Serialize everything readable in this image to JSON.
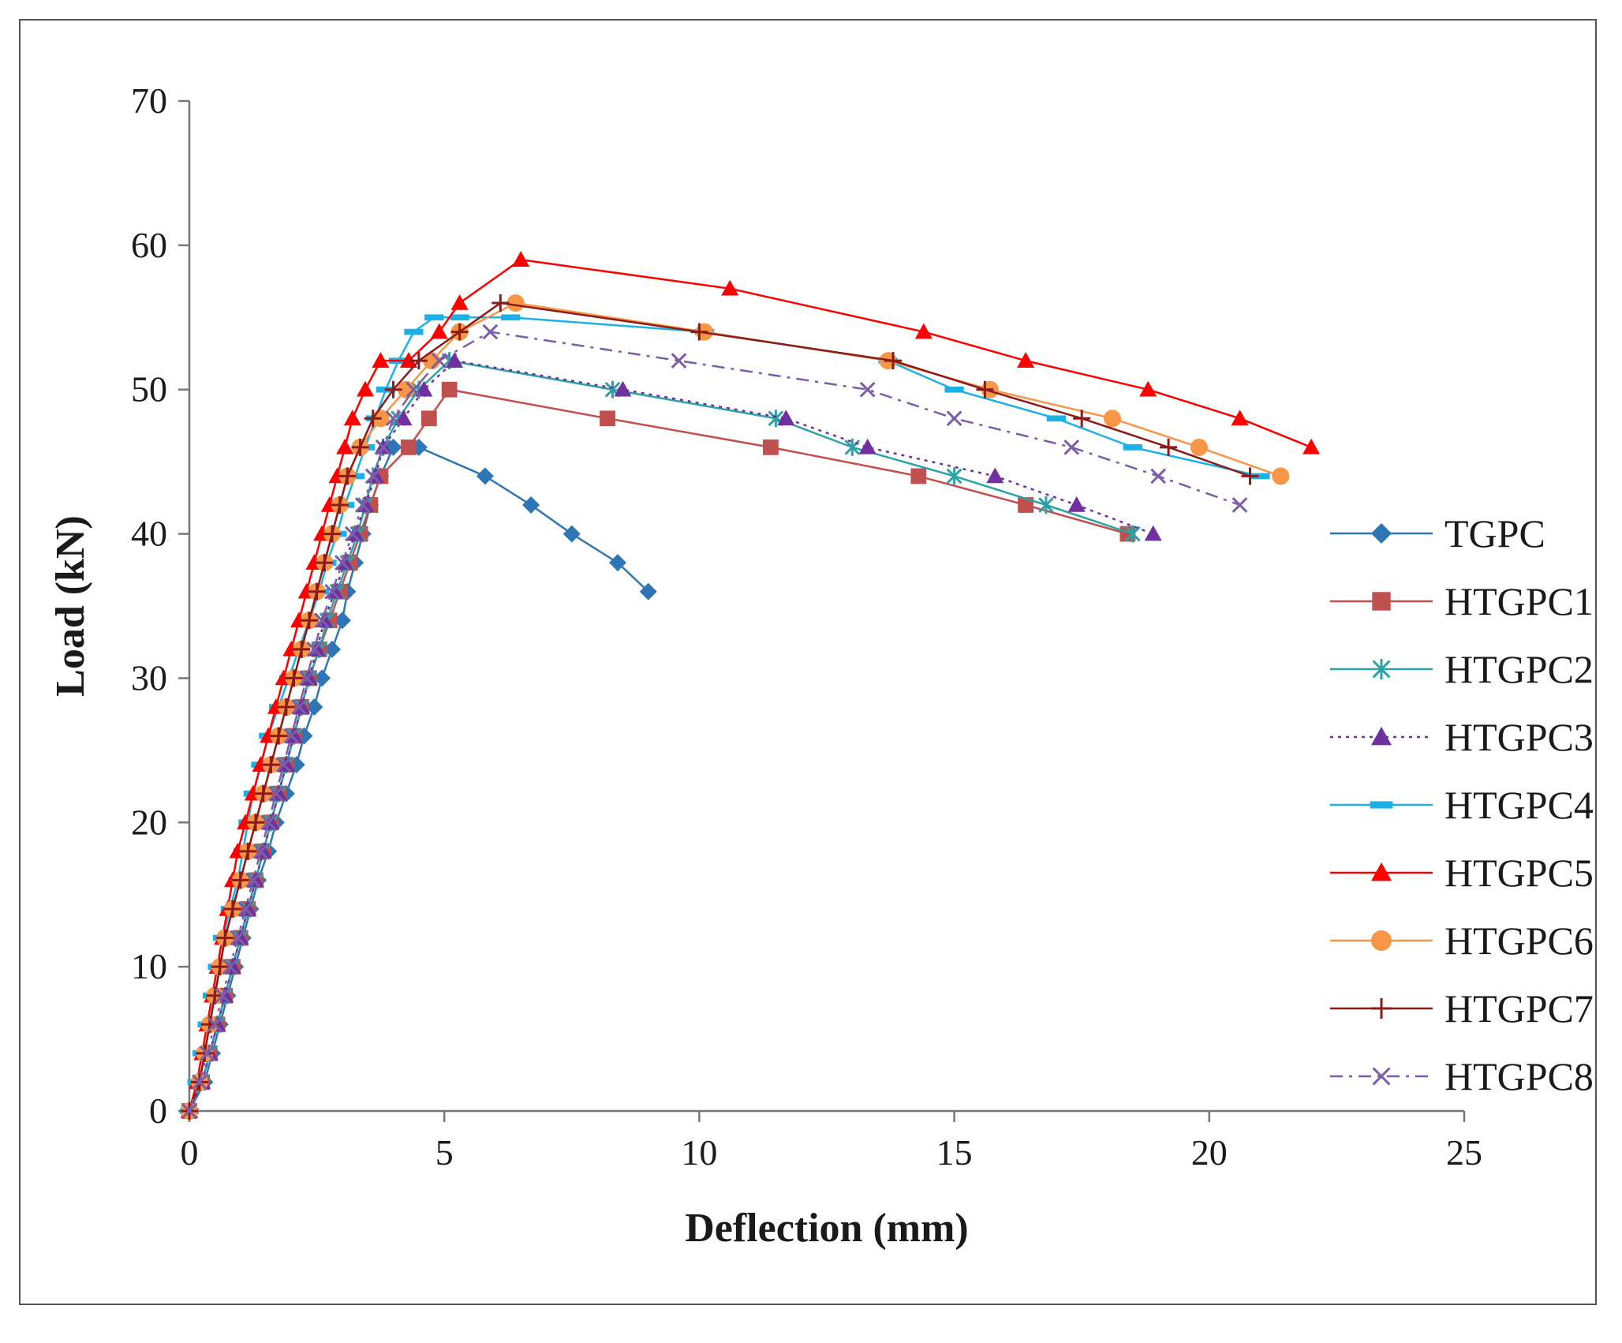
{
  "chart_data": {
    "type": "line",
    "title": "",
    "xlabel": "Deflection (mm)",
    "ylabel": "Load (kN)",
    "xlim": [
      0,
      25
    ],
    "ylim": [
      0,
      70
    ],
    "xticks": [
      0,
      5,
      10,
      15,
      20,
      25
    ],
    "yticks": [
      0,
      10,
      20,
      30,
      40,
      50,
      60,
      70
    ],
    "grid": false,
    "legend_position": "right",
    "series": [
      {
        "name": "TGPC",
        "color": "#2E75B6",
        "marker": "diamond",
        "dash": "solid",
        "x": [
          0,
          0.3,
          0.45,
          0.6,
          0.75,
          0.9,
          1.05,
          1.2,
          1.35,
          1.55,
          1.7,
          1.9,
          2.1,
          2.25,
          2.45,
          2.6,
          2.8,
          3.0,
          3.1,
          3.25,
          3.4,
          3.55,
          3.75,
          4.0,
          4.5,
          5.8,
          6.7,
          7.5,
          8.4,
          9.0
        ],
        "y": [
          0,
          2,
          4,
          6,
          8,
          10,
          12,
          14,
          16,
          18,
          20,
          22,
          24,
          26,
          28,
          30,
          32,
          34,
          36,
          38,
          40,
          42,
          44,
          46,
          46,
          44,
          42,
          40,
          38,
          36
        ]
      },
      {
        "name": "HTGPC1",
        "color": "#C0504D",
        "marker": "square",
        "dash": "solid",
        "x": [
          0,
          0.25,
          0.4,
          0.55,
          0.7,
          0.85,
          1.0,
          1.15,
          1.3,
          1.45,
          1.6,
          1.75,
          1.9,
          2.05,
          2.2,
          2.35,
          2.55,
          2.75,
          2.95,
          3.15,
          3.35,
          3.55,
          3.75,
          4.3,
          4.7,
          5.1,
          8.2,
          11.4,
          14.3,
          16.4,
          18.4
        ],
        "y": [
          0,
          2,
          4,
          6,
          8,
          10,
          12,
          14,
          16,
          18,
          20,
          22,
          24,
          26,
          28,
          30,
          32,
          34,
          36,
          38,
          40,
          42,
          44,
          46,
          48,
          50,
          48,
          46,
          44,
          42,
          40
        ]
      },
      {
        "name": "HTGPC2",
        "color": "#2BA3A6",
        "marker": "asterisk",
        "dash": "solid",
        "x": [
          0,
          0.25,
          0.4,
          0.55,
          0.7,
          0.85,
          1.0,
          1.15,
          1.3,
          1.45,
          1.6,
          1.75,
          1.9,
          2.05,
          2.2,
          2.35,
          2.55,
          2.7,
          2.9,
          3.1,
          3.3,
          3.45,
          3.6,
          3.8,
          4.1,
          4.5,
          5.1,
          8.3,
          11.5,
          13.0,
          15.0,
          16.8,
          18.5
        ],
        "y": [
          0,
          2,
          4,
          6,
          8,
          10,
          12,
          14,
          16,
          18,
          20,
          22,
          24,
          26,
          28,
          30,
          32,
          34,
          36,
          38,
          40,
          42,
          44,
          46,
          48,
          50,
          52,
          50,
          48,
          46,
          44,
          42,
          40
        ]
      },
      {
        "name": "HTGPC3",
        "color": "#7030A0",
        "marker": "triangle",
        "dash": "dotted",
        "x": [
          0,
          0.25,
          0.4,
          0.55,
          0.7,
          0.85,
          1.0,
          1.15,
          1.3,
          1.45,
          1.6,
          1.75,
          1.9,
          2.05,
          2.2,
          2.35,
          2.5,
          2.65,
          2.85,
          3.05,
          3.25,
          3.45,
          3.65,
          3.8,
          4.2,
          4.6,
          5.2,
          8.5,
          11.7,
          13.3,
          15.8,
          17.4,
          18.9
        ],
        "y": [
          0,
          2,
          4,
          6,
          8,
          10,
          12,
          14,
          16,
          18,
          20,
          22,
          24,
          26,
          28,
          30,
          32,
          34,
          36,
          38,
          40,
          42,
          44,
          46,
          48,
          50,
          52,
          50,
          48,
          46,
          44,
          42,
          40
        ]
      },
      {
        "name": "HTGPC4",
        "color": "#1CB0E8",
        "marker": "dash",
        "dash": "solid",
        "x": [
          0,
          0.15,
          0.25,
          0.35,
          0.45,
          0.55,
          0.65,
          0.8,
          0.95,
          1.05,
          1.15,
          1.25,
          1.4,
          1.55,
          1.75,
          1.95,
          2.15,
          2.35,
          2.55,
          2.7,
          2.9,
          3.05,
          3.25,
          3.45,
          3.65,
          3.85,
          4.1,
          4.4,
          4.8,
          5.3,
          6.3,
          10.1,
          13.7,
          15.0,
          17.0,
          18.5,
          21.0
        ],
        "y": [
          0,
          2,
          4,
          6,
          8,
          10,
          12,
          14,
          16,
          18,
          20,
          22,
          24,
          26,
          28,
          30,
          32,
          34,
          36,
          38,
          40,
          42,
          44,
          46,
          48,
          50,
          52,
          54,
          55,
          55,
          55,
          54,
          52,
          50,
          48,
          46,
          44
        ]
      },
      {
        "name": "HTGPC5",
        "color": "#FF0000",
        "marker": "triangle",
        "dash": "solid",
        "x": [
          0,
          0.15,
          0.25,
          0.35,
          0.45,
          0.55,
          0.65,
          0.75,
          0.85,
          0.95,
          1.1,
          1.25,
          1.4,
          1.55,
          1.7,
          1.85,
          2.0,
          2.15,
          2.3,
          2.45,
          2.6,
          2.75,
          2.9,
          3.05,
          3.2,
          3.45,
          3.75,
          4.3,
          4.9,
          5.3,
          6.5,
          10.6,
          14.4,
          16.4,
          18.8,
          20.6,
          22.0
        ],
        "y": [
          0,
          2,
          4,
          6,
          8,
          10,
          12,
          14,
          16,
          18,
          20,
          22,
          24,
          26,
          28,
          30,
          32,
          34,
          36,
          38,
          40,
          42,
          44,
          46,
          48,
          50,
          52,
          52,
          54,
          56,
          59,
          57,
          54,
          52,
          50,
          48,
          46
        ]
      },
      {
        "name": "HTGPC6",
        "color": "#F79646",
        "marker": "circle",
        "dash": "solid",
        "x": [
          0,
          0.2,
          0.3,
          0.4,
          0.5,
          0.6,
          0.7,
          0.85,
          1.0,
          1.15,
          1.3,
          1.45,
          1.6,
          1.75,
          1.9,
          2.05,
          2.2,
          2.35,
          2.5,
          2.65,
          2.8,
          2.95,
          3.1,
          3.35,
          3.75,
          4.25,
          4.75,
          5.3,
          6.4,
          10.1,
          13.7,
          15.7,
          18.1,
          19.8,
          21.4
        ],
        "y": [
          0,
          2,
          4,
          6,
          8,
          10,
          12,
          14,
          16,
          18,
          20,
          22,
          24,
          26,
          28,
          30,
          32,
          34,
          36,
          38,
          40,
          42,
          44,
          46,
          48,
          50,
          52,
          54,
          56,
          54,
          52,
          50,
          48,
          46,
          44
        ]
      },
      {
        "name": "HTGPC7",
        "color": "#8B1A1A",
        "marker": "plus",
        "dash": "solid",
        "x": [
          0,
          0.2,
          0.3,
          0.4,
          0.5,
          0.6,
          0.7,
          0.85,
          1.0,
          1.15,
          1.3,
          1.45,
          1.6,
          1.75,
          1.9,
          2.05,
          2.2,
          2.35,
          2.5,
          2.65,
          2.8,
          2.95,
          3.1,
          3.35,
          3.6,
          4.0,
          4.5,
          5.3,
          6.1,
          10.0,
          13.8,
          15.6,
          17.5,
          19.2,
          20.8
        ],
        "y": [
          0,
          2,
          4,
          6,
          8,
          10,
          12,
          14,
          16,
          18,
          20,
          22,
          24,
          26,
          28,
          30,
          32,
          34,
          36,
          38,
          40,
          42,
          44,
          46,
          48,
          50,
          52,
          54,
          56,
          54,
          52,
          50,
          48,
          46,
          44
        ]
      },
      {
        "name": "HTGPC8",
        "color": "#7B5EA7",
        "marker": "x",
        "dash": "dashdot",
        "x": [
          0,
          0.2,
          0.35,
          0.5,
          0.65,
          0.8,
          0.95,
          1.1,
          1.25,
          1.4,
          1.55,
          1.7,
          1.85,
          2.0,
          2.15,
          2.3,
          2.45,
          2.6,
          2.8,
          3.0,
          3.2,
          3.4,
          3.6,
          3.8,
          4.0,
          4.4,
          4.9,
          5.9,
          9.6,
          13.3,
          15.0,
          17.3,
          19.0,
          20.6
        ],
        "y": [
          0,
          2,
          4,
          6,
          8,
          10,
          12,
          14,
          16,
          18,
          20,
          22,
          24,
          26,
          28,
          30,
          32,
          34,
          36,
          38,
          40,
          42,
          44,
          46,
          48,
          50,
          52,
          54,
          52,
          50,
          48,
          46,
          44,
          42
        ]
      }
    ]
  }
}
